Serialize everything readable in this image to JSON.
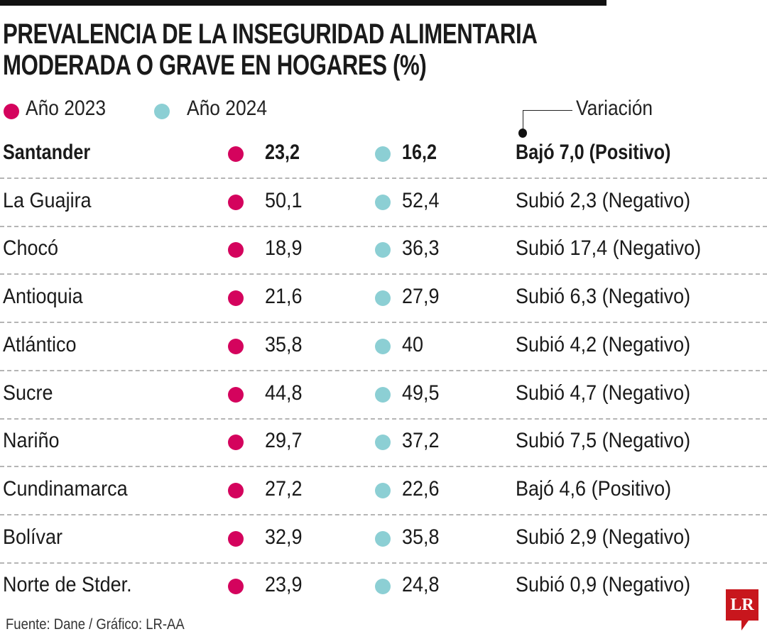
{
  "title_line1": "PREVALENCIA DE LA INSEGURIDAD ALIMENTARIA",
  "title_line2": "MODERADA O GRAVE EN HOGARES (%)",
  "legend": {
    "y2023": "Año 2023",
    "y2024": "Año 2024",
    "variation": "Variación"
  },
  "colors": {
    "y2023": "#d4035d",
    "y2024": "#8ccfd4",
    "logo": "#c8161d"
  },
  "chart_data": {
    "type": "table",
    "title": "PREVALENCIA DE LA INSEGURIDAD ALIMENTARIA MODERADA O GRAVE EN HOGARES (%)",
    "columns": [
      "Año 2023",
      "Año 2024",
      "Variación"
    ],
    "rows": [
      {
        "name": "Santander",
        "v2023": "23,2",
        "v2024": "16,2",
        "variation": "Bajó 7,0 (Positivo)",
        "highlight": true
      },
      {
        "name": "La Guajira",
        "v2023": "50,1",
        "v2024": "52,4",
        "variation": "Subió 2,3 (Negativo)"
      },
      {
        "name": "Chocó",
        "v2023": "18,9",
        "v2024": "36,3",
        "variation": "Subió 17,4 (Negativo)"
      },
      {
        "name": "Antioquia",
        "v2023": "21,6",
        "v2024": "27,9",
        "variation": "Subió 6,3 (Negativo)"
      },
      {
        "name": "Atlántico",
        "v2023": "35,8",
        "v2024": "40",
        "variation": "Subió 4,2 (Negativo)"
      },
      {
        "name": "Sucre",
        "v2023": "44,8",
        "v2024": "49,5",
        "variation": "Subió 4,7 (Negativo)"
      },
      {
        "name": "Nariño",
        "v2023": "29,7",
        "v2024": "37,2",
        "variation": "Subió 7,5 (Negativo)"
      },
      {
        "name": "Cundinamarca",
        "v2023": "27,2",
        "v2024": "22,6",
        "variation": "Bajó 4,6 (Positivo)"
      },
      {
        "name": "Bolívar",
        "v2023": "32,9",
        "v2024": "35,8",
        "variation": "Subió 2,9 (Negativo)"
      },
      {
        "name": "Norte de Stder.",
        "v2023": "23,9",
        "v2024": "24,8",
        "variation": "Subió 0,9 (Negativo)"
      }
    ]
  },
  "source": "Fuente: Dane / Gráfico: LR-AA",
  "logo": "LR"
}
